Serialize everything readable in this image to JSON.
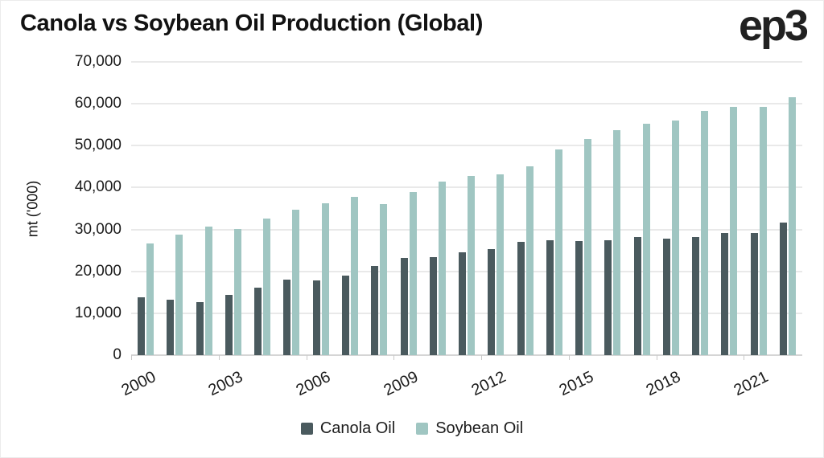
{
  "page": {
    "title": "Canola vs Soybean Oil Production (Global)",
    "brand": "ep3"
  },
  "chart_data": {
    "type": "bar",
    "title": "Canola vs Soybean Oil Production (Global)",
    "xlabel": "",
    "ylabel": "mt ('000)",
    "ylim": [
      0,
      70000
    ],
    "ytick_step": 10000,
    "xtick_every": 3,
    "grid": true,
    "legend_position": "bottom",
    "categories": [
      "2000",
      "2001",
      "2002",
      "2003",
      "2004",
      "2005",
      "2006",
      "2007",
      "2008",
      "2009",
      "2010",
      "2011",
      "2012",
      "2013",
      "2014",
      "2015",
      "2016",
      "2017",
      "2018",
      "2019",
      "2020",
      "2021",
      "2022"
    ],
    "xtick_labels_shown": [
      "2000",
      "2003",
      "2006",
      "2009",
      "2012",
      "2015",
      "2018",
      "2021"
    ],
    "series": [
      {
        "name": "Canola Oil",
        "color": "#4a5a5e",
        "values": [
          13900,
          13200,
          12600,
          14400,
          16200,
          18100,
          17900,
          19000,
          21300,
          23200,
          23400,
          24600,
          25300,
          27000,
          27400,
          27300,
          27500,
          28100,
          27800,
          28100,
          29100,
          29100,
          31700
        ]
      },
      {
        "name": "Soybean Oil",
        "color": "#a0c6c2",
        "values": [
          26700,
          28800,
          30600,
          30200,
          32600,
          34700,
          36300,
          37800,
          36100,
          38900,
          41400,
          42800,
          43200,
          45100,
          49100,
          51600,
          53700,
          55200,
          56000,
          58300,
          59200,
          59300,
          61500
        ]
      }
    ]
  }
}
